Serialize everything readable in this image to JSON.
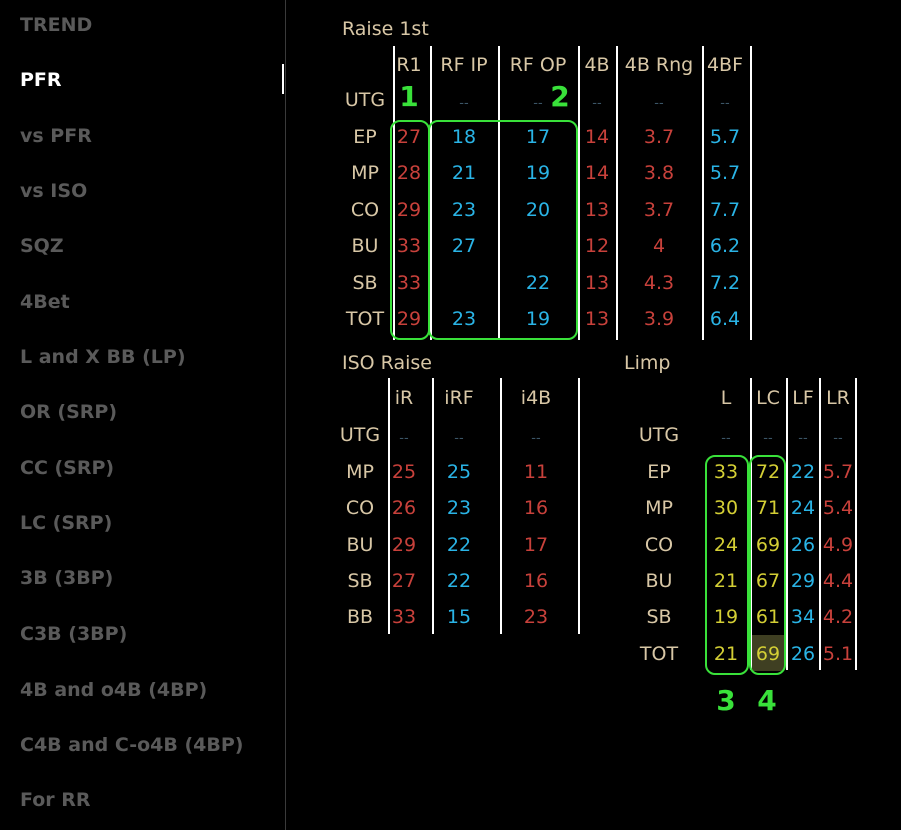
{
  "sidebar": {
    "items": [
      "TREND",
      "PFR",
      "vs PFR",
      "vs ISO",
      "SQZ",
      "4Bet",
      "L and X BB (LP)",
      "OR (SRP)",
      "CC (SRP)",
      "LC (SRP)",
      "3B (3BP)",
      "C3B (3BP)",
      "4B and o4B (4BP)",
      "C4B and C-o4B (4BP)",
      "For RR"
    ],
    "active": "PFR"
  },
  "raise_first": {
    "title": "Raise 1st",
    "headers": [
      "R1",
      "RF  IP",
      "RF  OP",
      "4B",
      "4B Rng",
      "4BF"
    ],
    "rows": [
      {
        "pos": "UTG",
        "vals": [
          "--",
          "--",
          "--",
          "--",
          "--",
          "--"
        ]
      },
      {
        "pos": "EP",
        "vals": [
          "27",
          "18",
          "17",
          "14",
          "3.7",
          "5.7"
        ]
      },
      {
        "pos": "MP",
        "vals": [
          "28",
          "21",
          "19",
          "14",
          "3.8",
          "5.7"
        ]
      },
      {
        "pos": "CO",
        "vals": [
          "29",
          "23",
          "20",
          "13",
          "3.7",
          "7.7"
        ]
      },
      {
        "pos": "BU",
        "vals": [
          "33",
          "27",
          "",
          "12",
          "4",
          "6.2"
        ]
      },
      {
        "pos": "SB",
        "vals": [
          "33",
          "",
          "22",
          "13",
          "4.3",
          "7.2"
        ]
      },
      {
        "pos": "TOT",
        "vals": [
          "29",
          "23",
          "19",
          "13",
          "3.9",
          "6.4"
        ]
      }
    ]
  },
  "iso_raise": {
    "title": "ISO Raise",
    "headers": [
      "iR",
      "iRF",
      "i4B"
    ],
    "rows": [
      {
        "pos": "UTG",
        "vals": [
          "--",
          "--",
          "--"
        ]
      },
      {
        "pos": "MP",
        "vals": [
          "25",
          "25",
          "11"
        ]
      },
      {
        "pos": "CO",
        "vals": [
          "26",
          "23",
          "16"
        ]
      },
      {
        "pos": "BU",
        "vals": [
          "29",
          "22",
          "17"
        ]
      },
      {
        "pos": "SB",
        "vals": [
          "27",
          "22",
          "16"
        ]
      },
      {
        "pos": "BB",
        "vals": [
          "33",
          "15",
          "23"
        ]
      }
    ]
  },
  "limp": {
    "title": "Limp",
    "headers": [
      "L",
      "LC",
      "LF",
      "LR"
    ],
    "rows": [
      {
        "pos": "UTG",
        "vals": [
          "--",
          "--",
          "--",
          "--"
        ]
      },
      {
        "pos": "EP",
        "vals": [
          "33",
          "72",
          "22",
          "5.7"
        ]
      },
      {
        "pos": "MP",
        "vals": [
          "30",
          "71",
          "24",
          "5.4"
        ]
      },
      {
        "pos": "CO",
        "vals": [
          "24",
          "69",
          "26",
          "4.9"
        ]
      },
      {
        "pos": "BU",
        "vals": [
          "21",
          "67",
          "29",
          "4.4"
        ]
      },
      {
        "pos": "SB",
        "vals": [
          "19",
          "61",
          "34",
          "4.2"
        ]
      },
      {
        "pos": "TOT",
        "vals": [
          "21",
          "69",
          "26",
          "5.1"
        ]
      }
    ]
  },
  "annotations": [
    "1",
    "2",
    "3",
    "4"
  ],
  "colors": {
    "red": "#c8413b",
    "blue": "#2ab4e6",
    "yellow": "#d4cf35",
    "header": "#d8c7a6",
    "annotation": "#39e13a"
  }
}
